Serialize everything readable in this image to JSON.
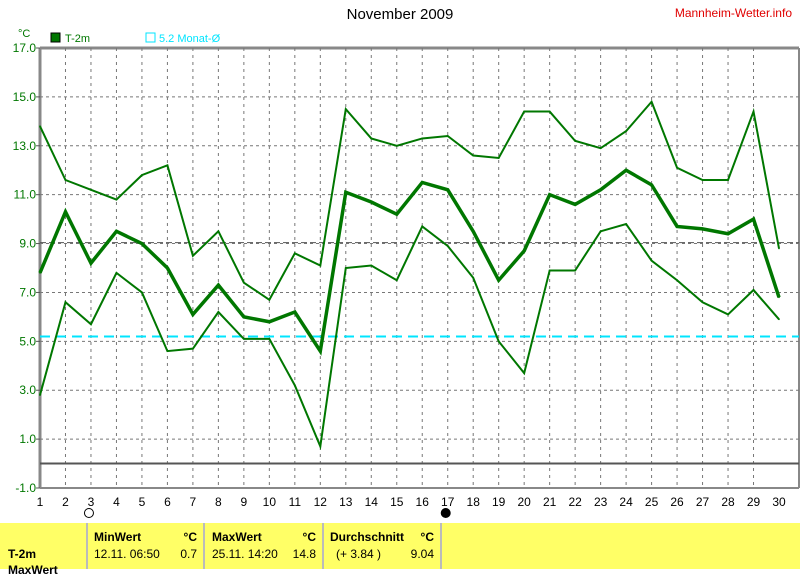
{
  "header": {
    "title": "November 2009",
    "brand": "Mannheim-Wetter.info"
  },
  "chart_data": {
    "type": "line",
    "title": "November 2009",
    "ylabel": "°C",
    "ylim": [
      -1,
      17
    ],
    "yticks": [
      "17.0",
      "15.0",
      "13.0",
      "11.0",
      "9.0",
      "7.0",
      "5.0",
      "3.0",
      "1.0",
      "-1.0"
    ],
    "x": [
      1,
      2,
      3,
      4,
      5,
      6,
      7,
      8,
      9,
      10,
      11,
      12,
      13,
      14,
      15,
      16,
      17,
      18,
      19,
      20,
      21,
      22,
      23,
      24,
      25,
      26,
      27,
      28,
      29,
      30
    ],
    "grid": true,
    "legend": [
      {
        "name": "T-2m",
        "color": "#007700"
      },
      {
        "name": "5.2 Monat-Ø",
        "color": "#00e5ff"
      }
    ],
    "series": [
      {
        "role": "max",
        "color": "#007700",
        "values": [
          13.8,
          11.6,
          11.2,
          10.8,
          11.8,
          12.2,
          8.5,
          9.5,
          7.4,
          6.7,
          8.6,
          8.1,
          14.5,
          13.3,
          13.0,
          13.3,
          13.4,
          12.6,
          12.5,
          14.4,
          14.4,
          13.2,
          12.9,
          13.6,
          14.8,
          12.1,
          11.6,
          11.6,
          14.4,
          8.8
        ]
      },
      {
        "name": "T-2m",
        "role": "mean",
        "color": "#007700",
        "values": [
          7.8,
          10.3,
          8.2,
          9.5,
          9.0,
          8.0,
          6.1,
          7.3,
          6.0,
          5.8,
          6.2,
          4.6,
          11.1,
          10.7,
          10.2,
          11.5,
          11.2,
          9.5,
          7.5,
          8.7,
          11.0,
          10.6,
          11.2,
          12.0,
          11.4,
          9.7,
          9.6,
          9.4,
          10.0,
          6.8
        ]
      },
      {
        "role": "min",
        "color": "#007700",
        "values": [
          2.8,
          6.6,
          5.7,
          7.8,
          7.0,
          4.6,
          4.7,
          6.2,
          5.1,
          5.1,
          3.2,
          0.7,
          8.0,
          8.1,
          7.5,
          9.7,
          8.9,
          7.6,
          5.0,
          3.7,
          7.9,
          7.9,
          9.5,
          9.8,
          8.3,
          7.5,
          6.6,
          6.1,
          7.1,
          5.9
        ]
      }
    ],
    "reference_lines": [
      {
        "value": 9.04,
        "color": "#555555"
      },
      {
        "value": 5.2,
        "color": "#00e5ff"
      },
      {
        "value": 0,
        "color": "#555555"
      }
    ],
    "moon_phases": [
      {
        "day": 3,
        "phase": "full"
      },
      {
        "day": 17,
        "phase": "new"
      }
    ]
  },
  "footer": {
    "row_label": "T-2m",
    "row2_label": "MaxWert",
    "min": {
      "label": "MinWert",
      "unit": "°C",
      "date": "12.11.  06:50",
      "value": "0.7"
    },
    "max": {
      "label": "MaxWert",
      "unit": "°C",
      "date": "25.11.  14:20",
      "value": "14.8"
    },
    "avg": {
      "label": "Durchschnitt",
      "unit": "°C",
      "diff": "(+ 3.84 )",
      "value": "9.04"
    }
  }
}
